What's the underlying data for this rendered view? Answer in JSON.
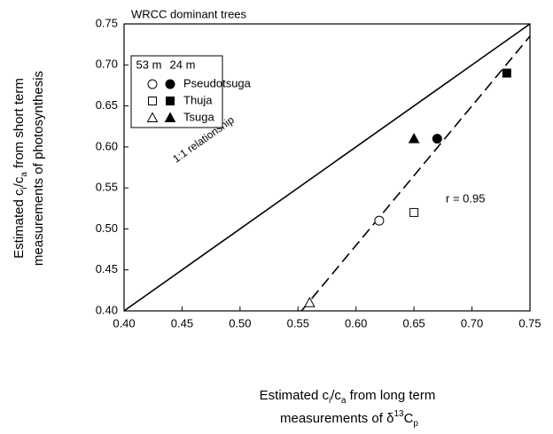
{
  "chart_data": {
    "type": "scatter",
    "title": "WRCC dominant trees",
    "y_label": {
      "line1": [
        "Estimated c",
        "i",
        "/c",
        "a",
        " from short term"
      ],
      "line2": [
        "measurements of photosynthesis"
      ]
    },
    "x_label": {
      "line1": [
        "Estimated c",
        "i",
        "/c",
        "a",
        " from long term"
      ],
      "line2": [
        "measurements of δ",
        "13",
        "C",
        "p"
      ]
    },
    "xlim": [
      0.4,
      0.75
    ],
    "ylim": [
      0.4,
      0.75
    ],
    "xticks": [
      {
        "value": 0.4,
        "label": "0.40"
      },
      {
        "value": 0.45,
        "label": "0.45"
      },
      {
        "value": 0.5,
        "label": "0.50"
      },
      {
        "value": 0.55,
        "label": "0.55"
      },
      {
        "value": 0.6,
        "label": "0.60"
      },
      {
        "value": 0.65,
        "label": "0.65"
      },
      {
        "value": 0.7,
        "label": "0.70"
      },
      {
        "value": 0.75,
        "label": "0.75"
      }
    ],
    "yticks": [
      {
        "value": 0.4,
        "label": "0.40"
      },
      {
        "value": 0.45,
        "label": "0.45"
      },
      {
        "value": 0.5,
        "label": "0.50"
      },
      {
        "value": 0.55,
        "label": "0.55"
      },
      {
        "value": 0.6,
        "label": "0.60"
      },
      {
        "value": 0.65,
        "label": "0.65"
      },
      {
        "value": 0.7,
        "label": "0.70"
      },
      {
        "value": 0.75,
        "label": "0.75"
      }
    ],
    "legend_columns": [
      "53 m",
      "24 m"
    ],
    "fill_styles": [
      "open",
      "filled"
    ],
    "color": "#000000",
    "series": [
      {
        "name": "Pseudotsuga",
        "marker": "circle",
        "x": [
          0.62,
          0.67
        ],
        "y": [
          0.51,
          0.61
        ]
      },
      {
        "name": "Thuja",
        "marker": "square",
        "x": [
          0.65,
          0.73
        ],
        "y": [
          0.52,
          0.69
        ]
      },
      {
        "name": "Tsuga",
        "marker": "triangle",
        "x": [
          0.56,
          0.65
        ],
        "y": [
          0.41,
          0.61
        ]
      }
    ],
    "lines": [
      {
        "label": "1:1 relationship",
        "style": "solid",
        "x": [
          0.4,
          0.75
        ],
        "y": [
          0.4,
          0.75
        ]
      },
      {
        "label": "r = 0.95",
        "style": "dashed",
        "x": [
          0.553,
          0.75
        ],
        "y": [
          0.4,
          0.735
        ]
      }
    ]
  }
}
